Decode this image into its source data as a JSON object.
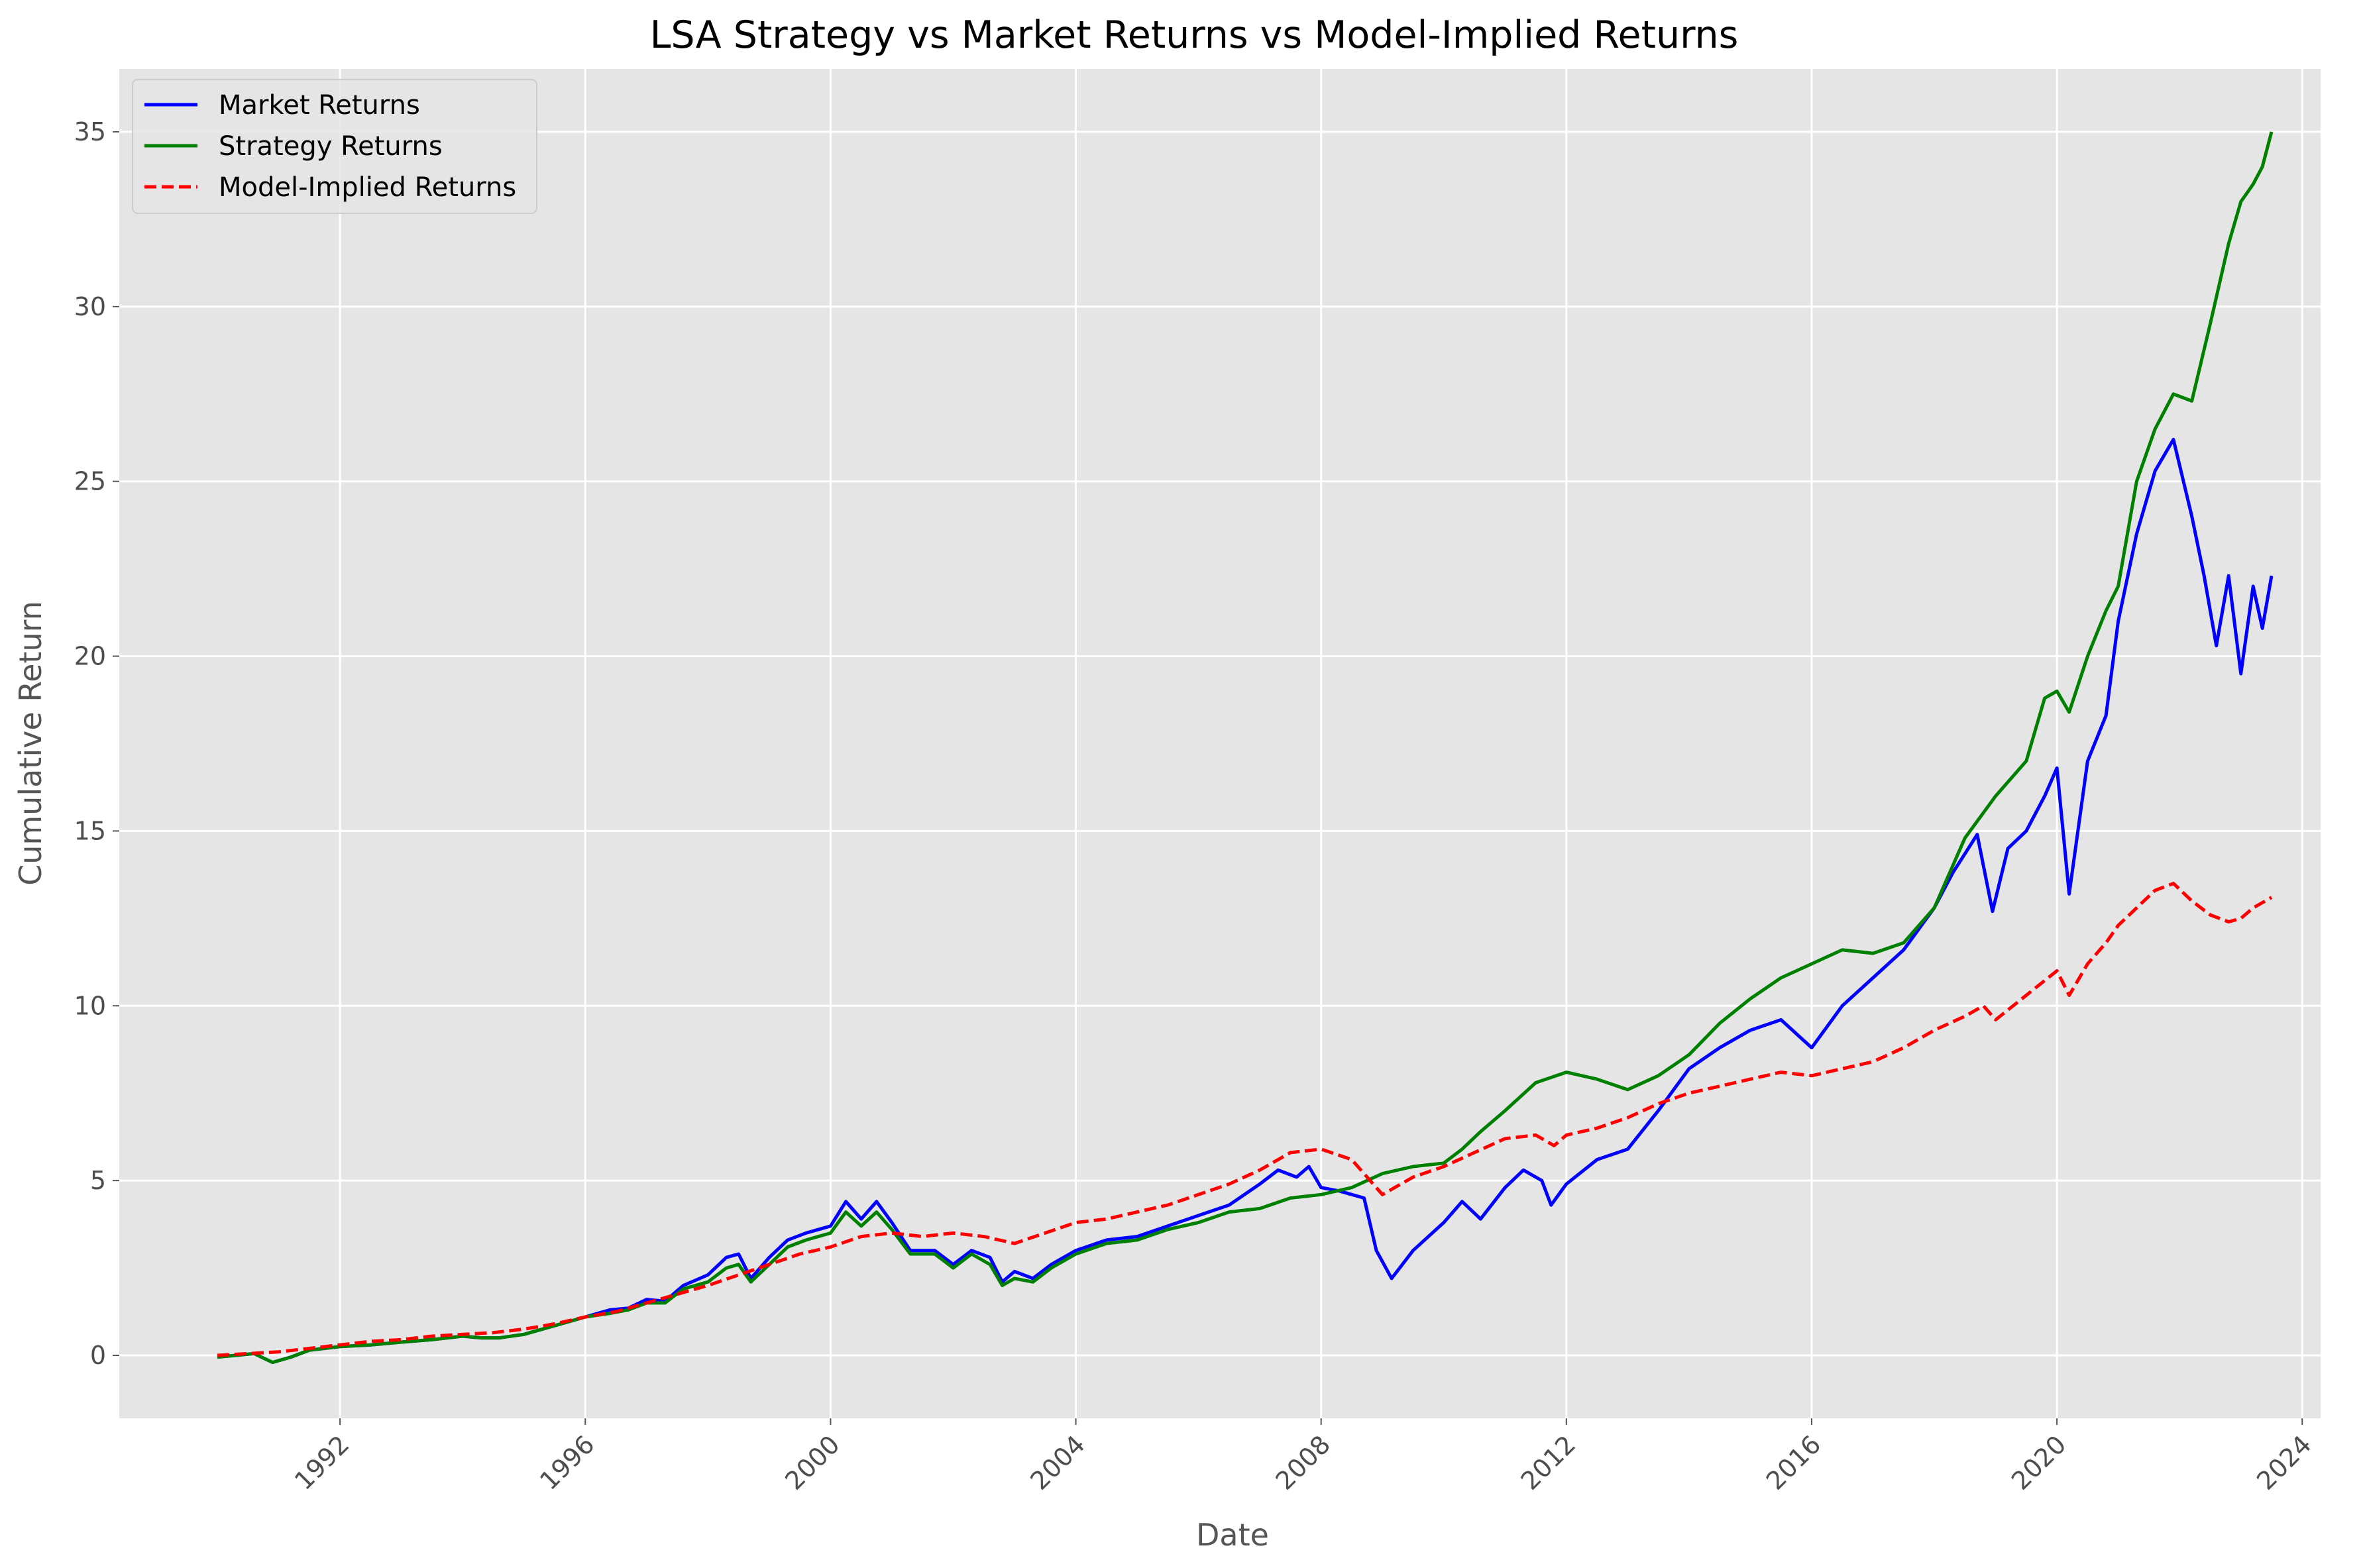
{
  "chart_data": {
    "type": "line",
    "title": "LSA Strategy vs Market Returns vs Model-Implied Returns",
    "xlabel": "Date",
    "ylabel": "Cumulative Return",
    "xlim": [
      1988.4,
      2024.3
    ],
    "ylim": [
      -1.8,
      36.8
    ],
    "x_ticks": [
      1992,
      1996,
      2000,
      2004,
      2008,
      2012,
      2016,
      2020,
      2024
    ],
    "y_ticks": [
      0,
      5,
      10,
      15,
      20,
      25,
      30,
      35
    ],
    "grid": true,
    "legend_position": "upper-left",
    "series": [
      {
        "name": "Market Returns",
        "color": "#0000ff",
        "style": "solid",
        "points": [
          [
            1990.0,
            -0.05
          ],
          [
            1990.3,
            0.0
          ],
          [
            1990.6,
            0.05
          ],
          [
            1990.9,
            -0.2
          ],
          [
            1991.2,
            -0.05
          ],
          [
            1991.5,
            0.15
          ],
          [
            1992.0,
            0.25
          ],
          [
            1992.5,
            0.3
          ],
          [
            1993.0,
            0.38
          ],
          [
            1993.5,
            0.45
          ],
          [
            1994.0,
            0.55
          ],
          [
            1994.3,
            0.5
          ],
          [
            1994.6,
            0.5
          ],
          [
            1995.0,
            0.6
          ],
          [
            1995.5,
            0.85
          ],
          [
            1996.0,
            1.1
          ],
          [
            1996.4,
            1.3
          ],
          [
            1996.7,
            1.35
          ],
          [
            1997.0,
            1.6
          ],
          [
            1997.3,
            1.55
          ],
          [
            1997.6,
            2.0
          ],
          [
            1998.0,
            2.3
          ],
          [
            1998.3,
            2.8
          ],
          [
            1998.5,
            2.9
          ],
          [
            1998.7,
            2.2
          ],
          [
            1999.0,
            2.8
          ],
          [
            1999.3,
            3.3
          ],
          [
            1999.6,
            3.5
          ],
          [
            2000.0,
            3.7
          ],
          [
            2000.25,
            4.4
          ],
          [
            2000.5,
            3.9
          ],
          [
            2000.75,
            4.4
          ],
          [
            2001.0,
            3.8
          ],
          [
            2001.3,
            3.0
          ],
          [
            2001.7,
            3.0
          ],
          [
            2002.0,
            2.6
          ],
          [
            2002.3,
            3.0
          ],
          [
            2002.6,
            2.8
          ],
          [
            2002.8,
            2.1
          ],
          [
            2003.0,
            2.4
          ],
          [
            2003.3,
            2.2
          ],
          [
            2003.6,
            2.6
          ],
          [
            2004.0,
            3.0
          ],
          [
            2004.5,
            3.3
          ],
          [
            2005.0,
            3.4
          ],
          [
            2005.5,
            3.7
          ],
          [
            2006.0,
            4.0
          ],
          [
            2006.5,
            4.3
          ],
          [
            2007.0,
            4.9
          ],
          [
            2007.3,
            5.3
          ],
          [
            2007.6,
            5.1
          ],
          [
            2007.8,
            5.4
          ],
          [
            2008.0,
            4.8
          ],
          [
            2008.3,
            4.7
          ],
          [
            2008.7,
            4.5
          ],
          [
            2008.9,
            3.0
          ],
          [
            2009.15,
            2.2
          ],
          [
            2009.5,
            3.0
          ],
          [
            2010.0,
            3.8
          ],
          [
            2010.3,
            4.4
          ],
          [
            2010.6,
            3.9
          ],
          [
            2011.0,
            4.8
          ],
          [
            2011.3,
            5.3
          ],
          [
            2011.6,
            5.0
          ],
          [
            2011.75,
            4.3
          ],
          [
            2012.0,
            4.9
          ],
          [
            2012.5,
            5.6
          ],
          [
            2013.0,
            5.9
          ],
          [
            2013.5,
            7.0
          ],
          [
            2014.0,
            8.2
          ],
          [
            2014.5,
            8.8
          ],
          [
            2015.0,
            9.3
          ],
          [
            2015.5,
            9.6
          ],
          [
            2016.0,
            8.8
          ],
          [
            2016.5,
            10.0
          ],
          [
            2017.0,
            10.8
          ],
          [
            2017.5,
            11.6
          ],
          [
            2018.0,
            12.8
          ],
          [
            2018.3,
            13.8
          ],
          [
            2018.7,
            14.9
          ],
          [
            2018.95,
            12.7
          ],
          [
            2019.2,
            14.5
          ],
          [
            2019.5,
            15.0
          ],
          [
            2019.8,
            16.0
          ],
          [
            2020.0,
            16.8
          ],
          [
            2020.2,
            13.2
          ],
          [
            2020.5,
            17.0
          ],
          [
            2020.8,
            18.3
          ],
          [
            2021.0,
            21.0
          ],
          [
            2021.3,
            23.5
          ],
          [
            2021.6,
            25.3
          ],
          [
            2021.9,
            26.2
          ],
          [
            2022.2,
            24.0
          ],
          [
            2022.4,
            22.3
          ],
          [
            2022.6,
            20.3
          ],
          [
            2022.8,
            22.3
          ],
          [
            2023.0,
            19.5
          ],
          [
            2023.2,
            22.0
          ],
          [
            2023.35,
            20.8
          ],
          [
            2023.5,
            22.3
          ]
        ]
      },
      {
        "name": "Strategy Returns",
        "color": "#008000",
        "style": "solid",
        "points": [
          [
            1990.0,
            -0.05
          ],
          [
            1990.3,
            0.0
          ],
          [
            1990.6,
            0.05
          ],
          [
            1990.9,
            -0.2
          ],
          [
            1991.2,
            -0.05
          ],
          [
            1991.5,
            0.15
          ],
          [
            1992.0,
            0.25
          ],
          [
            1992.5,
            0.3
          ],
          [
            1993.0,
            0.38
          ],
          [
            1993.5,
            0.45
          ],
          [
            1994.0,
            0.55
          ],
          [
            1994.3,
            0.5
          ],
          [
            1994.6,
            0.5
          ],
          [
            1995.0,
            0.6
          ],
          [
            1995.5,
            0.85
          ],
          [
            1996.0,
            1.1
          ],
          [
            1996.4,
            1.2
          ],
          [
            1996.7,
            1.3
          ],
          [
            1997.0,
            1.5
          ],
          [
            1997.3,
            1.5
          ],
          [
            1997.6,
            1.9
          ],
          [
            1998.0,
            2.1
          ],
          [
            1998.3,
            2.5
          ],
          [
            1998.5,
            2.6
          ],
          [
            1998.7,
            2.1
          ],
          [
            1999.0,
            2.6
          ],
          [
            1999.3,
            3.1
          ],
          [
            1999.6,
            3.3
          ],
          [
            2000.0,
            3.5
          ],
          [
            2000.25,
            4.1
          ],
          [
            2000.5,
            3.7
          ],
          [
            2000.75,
            4.1
          ],
          [
            2001.0,
            3.6
          ],
          [
            2001.3,
            2.9
          ],
          [
            2001.7,
            2.9
          ],
          [
            2002.0,
            2.5
          ],
          [
            2002.3,
            2.9
          ],
          [
            2002.6,
            2.6
          ],
          [
            2002.8,
            2.0
          ],
          [
            2003.0,
            2.2
          ],
          [
            2003.3,
            2.1
          ],
          [
            2003.6,
            2.5
          ],
          [
            2004.0,
            2.9
          ],
          [
            2004.5,
            3.2
          ],
          [
            2005.0,
            3.3
          ],
          [
            2005.5,
            3.6
          ],
          [
            2006.0,
            3.8
          ],
          [
            2006.5,
            4.1
          ],
          [
            2007.0,
            4.2
          ],
          [
            2007.5,
            4.5
          ],
          [
            2008.0,
            4.6
          ],
          [
            2008.5,
            4.8
          ],
          [
            2009.0,
            5.2
          ],
          [
            2009.5,
            5.4
          ],
          [
            2010.0,
            5.5
          ],
          [
            2010.3,
            5.9
          ],
          [
            2010.6,
            6.4
          ],
          [
            2011.0,
            7.0
          ],
          [
            2011.5,
            7.8
          ],
          [
            2012.0,
            8.1
          ],
          [
            2012.5,
            7.9
          ],
          [
            2013.0,
            7.6
          ],
          [
            2013.5,
            8.0
          ],
          [
            2014.0,
            8.6
          ],
          [
            2014.5,
            9.5
          ],
          [
            2015.0,
            10.2
          ],
          [
            2015.5,
            10.8
          ],
          [
            2016.0,
            11.2
          ],
          [
            2016.5,
            11.6
          ],
          [
            2017.0,
            11.5
          ],
          [
            2017.5,
            11.8
          ],
          [
            2018.0,
            12.8
          ],
          [
            2018.5,
            14.8
          ],
          [
            2019.0,
            16.0
          ],
          [
            2019.5,
            17.0
          ],
          [
            2019.8,
            18.8
          ],
          [
            2020.0,
            19.0
          ],
          [
            2020.2,
            18.4
          ],
          [
            2020.5,
            20.0
          ],
          [
            2020.8,
            21.3
          ],
          [
            2021.0,
            22.0
          ],
          [
            2021.3,
            25.0
          ],
          [
            2021.6,
            26.5
          ],
          [
            2021.9,
            27.5
          ],
          [
            2022.2,
            27.3
          ],
          [
            2022.5,
            29.5
          ],
          [
            2022.8,
            31.8
          ],
          [
            2023.0,
            33.0
          ],
          [
            2023.2,
            33.5
          ],
          [
            2023.35,
            34.0
          ],
          [
            2023.5,
            35.0
          ]
        ]
      },
      {
        "name": "Model-Implied Returns",
        "color": "#ff0000",
        "style": "dashed",
        "points": [
          [
            1990.0,
            0.0
          ],
          [
            1990.5,
            0.05
          ],
          [
            1991.0,
            0.1
          ],
          [
            1991.5,
            0.2
          ],
          [
            1992.0,
            0.3
          ],
          [
            1992.5,
            0.4
          ],
          [
            1993.0,
            0.45
          ],
          [
            1993.5,
            0.55
          ],
          [
            1994.0,
            0.6
          ],
          [
            1994.5,
            0.65
          ],
          [
            1995.0,
            0.75
          ],
          [
            1995.5,
            0.9
          ],
          [
            1996.0,
            1.1
          ],
          [
            1996.5,
            1.25
          ],
          [
            1997.0,
            1.5
          ],
          [
            1997.5,
            1.75
          ],
          [
            1998.0,
            2.0
          ],
          [
            1998.5,
            2.3
          ],
          [
            1999.0,
            2.6
          ],
          [
            1999.5,
            2.9
          ],
          [
            2000.0,
            3.1
          ],
          [
            2000.5,
            3.4
          ],
          [
            2001.0,
            3.5
          ],
          [
            2001.5,
            3.4
          ],
          [
            2002.0,
            3.5
          ],
          [
            2002.5,
            3.4
          ],
          [
            2003.0,
            3.2
          ],
          [
            2003.5,
            3.5
          ],
          [
            2004.0,
            3.8
          ],
          [
            2004.5,
            3.9
          ],
          [
            2005.0,
            4.1
          ],
          [
            2005.5,
            4.3
          ],
          [
            2006.0,
            4.6
          ],
          [
            2006.5,
            4.9
          ],
          [
            2007.0,
            5.3
          ],
          [
            2007.5,
            5.8
          ],
          [
            2008.0,
            5.9
          ],
          [
            2008.5,
            5.6
          ],
          [
            2008.8,
            5.0
          ],
          [
            2009.0,
            4.6
          ],
          [
            2009.5,
            5.1
          ],
          [
            2010.0,
            5.4
          ],
          [
            2010.5,
            5.8
          ],
          [
            2011.0,
            6.2
          ],
          [
            2011.5,
            6.3
          ],
          [
            2011.8,
            6.0
          ],
          [
            2012.0,
            6.3
          ],
          [
            2012.5,
            6.5
          ],
          [
            2013.0,
            6.8
          ],
          [
            2013.5,
            7.2
          ],
          [
            2014.0,
            7.5
          ],
          [
            2014.5,
            7.7
          ],
          [
            2015.0,
            7.9
          ],
          [
            2015.5,
            8.1
          ],
          [
            2016.0,
            8.0
          ],
          [
            2016.5,
            8.2
          ],
          [
            2017.0,
            8.4
          ],
          [
            2017.5,
            8.8
          ],
          [
            2018.0,
            9.3
          ],
          [
            2018.5,
            9.7
          ],
          [
            2018.8,
            10.0
          ],
          [
            2019.0,
            9.6
          ],
          [
            2019.5,
            10.3
          ],
          [
            2020.0,
            11.0
          ],
          [
            2020.2,
            10.3
          ],
          [
            2020.5,
            11.2
          ],
          [
            2020.8,
            11.8
          ],
          [
            2021.0,
            12.3
          ],
          [
            2021.3,
            12.8
          ],
          [
            2021.6,
            13.3
          ],
          [
            2021.9,
            13.5
          ],
          [
            2022.2,
            13.0
          ],
          [
            2022.5,
            12.6
          ],
          [
            2022.8,
            12.4
          ],
          [
            2023.0,
            12.5
          ],
          [
            2023.2,
            12.8
          ],
          [
            2023.5,
            13.1
          ]
        ]
      }
    ]
  }
}
